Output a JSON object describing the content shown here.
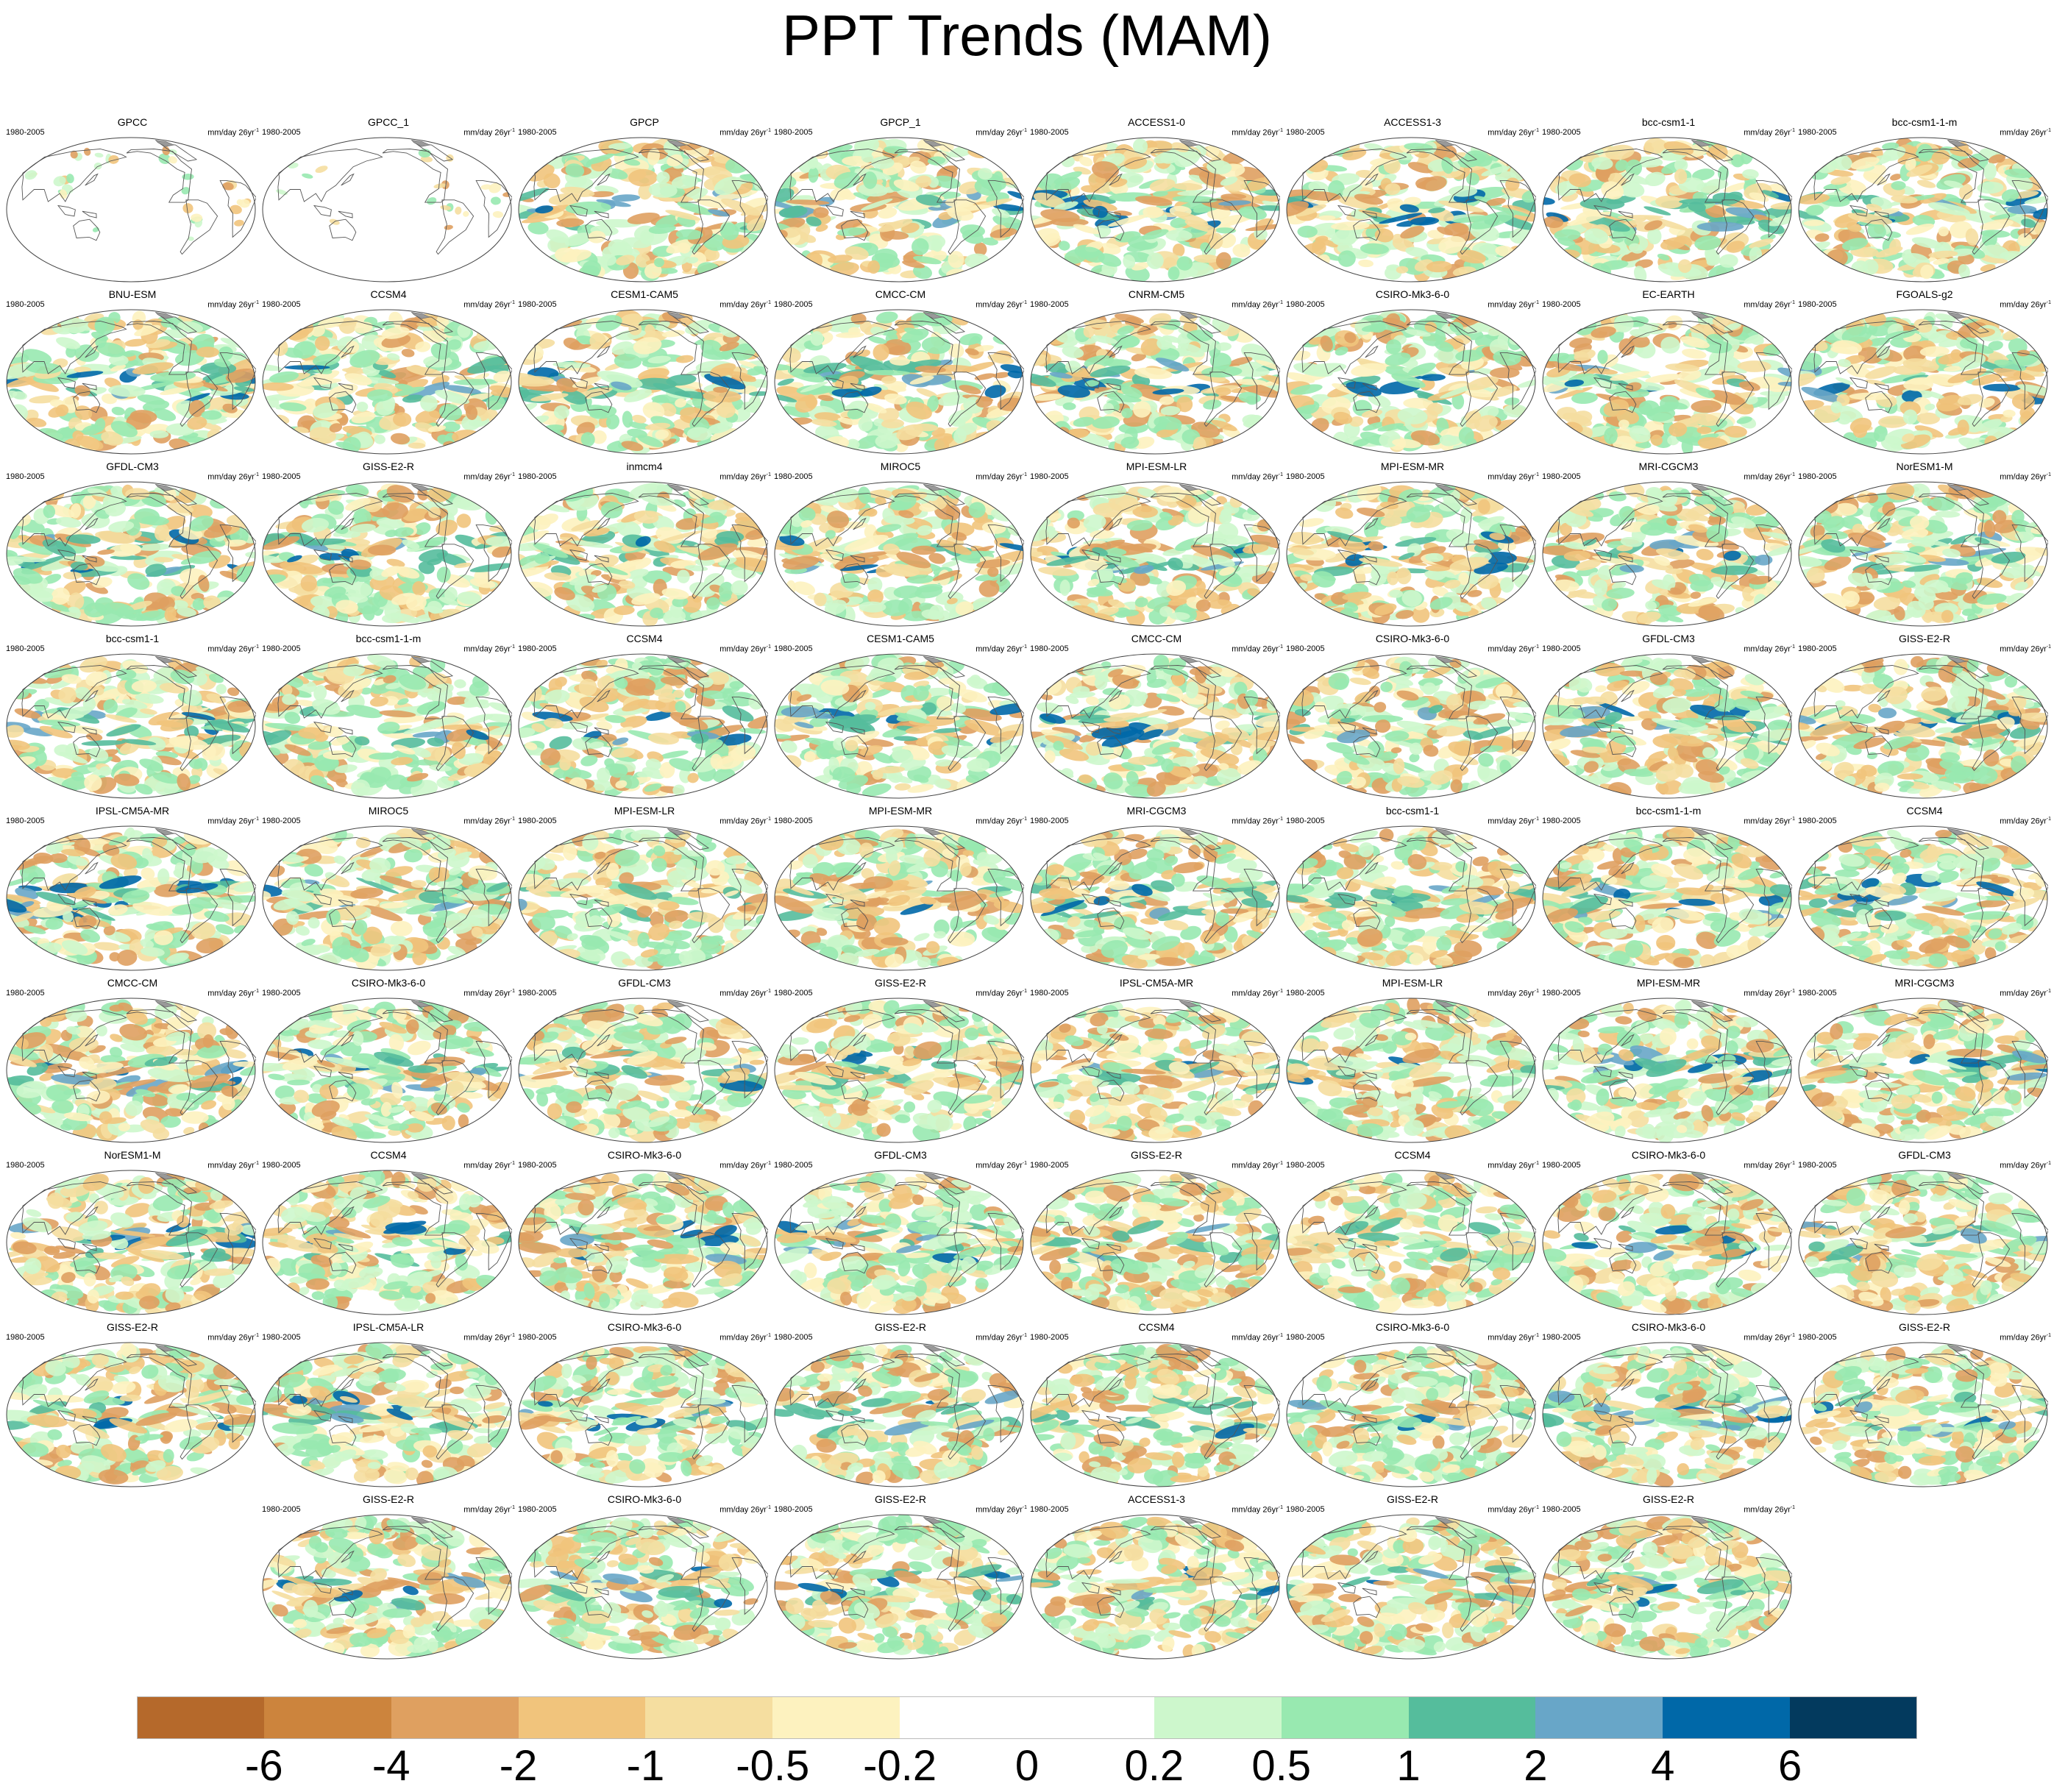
{
  "title": "PPT Trends (MAM)",
  "panel_period": "1980-2005",
  "panel_units": "mm/day 26yr",
  "panel_units_superscript": "-1",
  "rows": [
    [
      "GPCC",
      "GPCC_1",
      "GPCP",
      "GPCP_1",
      "ACCESS1-0",
      "ACCESS1-3",
      "bcc-csm1-1",
      "bcc-csm1-1-m"
    ],
    [
      "BNU-ESM",
      "CCSM4",
      "CESM1-CAM5",
      "CMCC-CM",
      "CNRM-CM5",
      "CSIRO-Mk3-6-0",
      "EC-EARTH",
      "FGOALS-g2"
    ],
    [
      "GFDL-CM3",
      "GISS-E2-R",
      "inmcm4",
      "MIROC5",
      "MPI-ESM-LR",
      "MPI-ESM-MR",
      "MRI-CGCM3",
      "NorESM1-M"
    ],
    [
      "bcc-csm1-1",
      "bcc-csm1-1-m",
      "CCSM4",
      "CESM1-CAM5",
      "CMCC-CM",
      "CSIRO-Mk3-6-0",
      "GFDL-CM3",
      "GISS-E2-R"
    ],
    [
      "IPSL-CM5A-MR",
      "MIROC5",
      "MPI-ESM-LR",
      "MPI-ESM-MR",
      "MRI-CGCM3",
      "bcc-csm1-1",
      "bcc-csm1-1-m",
      "CCSM4"
    ],
    [
      "CMCC-CM",
      "CSIRO-Mk3-6-0",
      "GFDL-CM3",
      "GISS-E2-R",
      "IPSL-CM5A-MR",
      "MPI-ESM-LR",
      "MPI-ESM-MR",
      "MRI-CGCM3"
    ],
    [
      "NorESM1-M",
      "CCSM4",
      "CSIRO-Mk3-6-0",
      "GFDL-CM3",
      "GISS-E2-R",
      "CCSM4",
      "CSIRO-Mk3-6-0",
      "GFDL-CM3"
    ],
    [
      "GISS-E2-R",
      "IPSL-CM5A-LR",
      "CSIRO-Mk3-6-0",
      "GISS-E2-R",
      "CCSM4",
      "CSIRO-Mk3-6-0",
      "CSIRO-Mk3-6-0",
      "GISS-E2-R"
    ],
    [
      "GISS-E2-R",
      "CSIRO-Mk3-6-0",
      "GISS-E2-R",
      "ACCESS1-3",
      "GISS-E2-R",
      "GISS-E2-R"
    ]
  ],
  "land_only_panels": [
    "GPCC",
    "GPCC_1"
  ],
  "colorbar": {
    "labels": [
      "-6",
      "-4",
      "-2",
      "-1",
      "-0.5",
      "-0.2",
      "0",
      "0.2",
      "0.5",
      "1",
      "2",
      "4",
      "6"
    ],
    "colors": [
      "#b5692b",
      "#cc843d",
      "#dfa060",
      "#f1c47c",
      "#f5dea0",
      "#fdf2bf",
      "#ffffff",
      "#ffffff",
      "#cdf7cc",
      "#98e9b0",
      "#55bd9c",
      "#68a6c8",
      "#0068a8",
      "#033a5e"
    ]
  }
}
